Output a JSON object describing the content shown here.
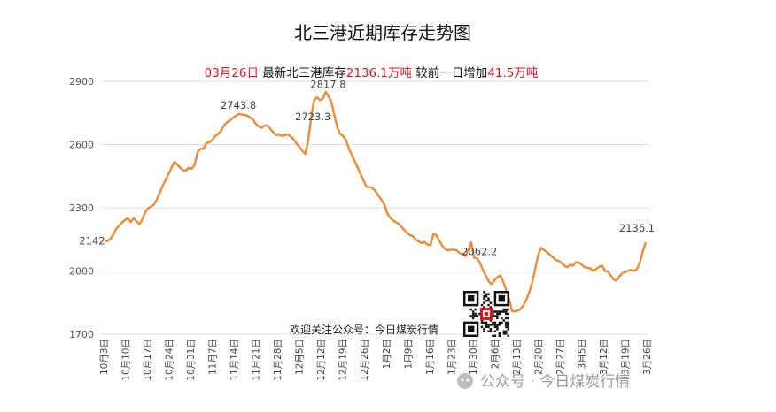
{
  "chart_data": {
    "type": "line",
    "title": "北三港近期库存走势图",
    "subtitle": {
      "date": "03月26日",
      "text1": "  最新北三港库存",
      "latest": "2136.1万吨",
      "text2": "  较前一日增加",
      "change": "41.5万吨"
    },
    "ylim": [
      1700,
      2900
    ],
    "yticks": [
      1700,
      2000,
      2300,
      2600,
      2900
    ],
    "xtick_labels": [
      "10月3日",
      "10月10日",
      "10月17日",
      "10月24日",
      "10月31日",
      "11月7日",
      "11月14日",
      "11月21日",
      "11月28日",
      "12月5日",
      "12月12日",
      "12月19日",
      "12月26日",
      "1月2日",
      "1月9日",
      "1月16日",
      "1月23日",
      "1月30日",
      "2月6日",
      "2月13日",
      "2月20日",
      "2月27日",
      "3月5日",
      "3月12日",
      "3月19日",
      "3月26日"
    ],
    "series": [
      {
        "color": "#ec8b35",
        "values": [
          2142,
          2142,
          2152,
          2172,
          2200,
          2215,
          2230,
          2242,
          2250,
          2232,
          2250,
          2235,
          2222,
          2245,
          2280,
          2298,
          2305,
          2315,
          2340,
          2372,
          2405,
          2432,
          2460,
          2490,
          2518,
          2505,
          2490,
          2478,
          2477,
          2490,
          2485,
          2505,
          2565,
          2580,
          2580,
          2608,
          2610,
          2622,
          2640,
          2650,
          2665,
          2690,
          2705,
          2712,
          2725,
          2735,
          2743.8,
          2743,
          2740,
          2738,
          2728,
          2720,
          2698,
          2685,
          2680,
          2690,
          2690,
          2675,
          2658,
          2645,
          2648,
          2640,
          2645,
          2648,
          2638,
          2625,
          2605,
          2588,
          2570,
          2555,
          2620,
          2723.3,
          2810,
          2825,
          2810,
          2817.8,
          2850,
          2830,
          2800,
          2740,
          2680,
          2650,
          2640,
          2620,
          2580,
          2550,
          2520,
          2490,
          2460,
          2430,
          2400,
          2398,
          2395,
          2380,
          2360,
          2340,
          2320,
          2280,
          2255,
          2242,
          2232,
          2225,
          2210,
          2195,
          2180,
          2170,
          2165,
          2148,
          2140,
          2132,
          2138,
          2125,
          2122,
          2175,
          2170,
          2145,
          2120,
          2105,
          2098,
          2100,
          2102,
          2098,
          2085,
          2080,
          2070,
          2100,
          2135,
          2062.2,
          2060,
          2040,
          2005,
          1980,
          1950,
          1938,
          1955,
          1970,
          1978,
          1950,
          1910,
          1870,
          1810,
          1808,
          1812,
          1820,
          1838,
          1865,
          1900,
          1948,
          2010,
          2075,
          2110,
          2100,
          2090,
          2078,
          2065,
          2052,
          2048,
          2040,
          2025,
          2018,
          2030,
          2025,
          2042,
          2040,
          2030,
          2018,
          2015,
          2012,
          2000,
          2010,
          2020,
          2025,
          2000,
          1998,
          1978,
          1958,
          1955,
          1975,
          1990,
          1995,
          2002,
          2005,
          2000,
          2010,
          2040,
          2094.6,
          2136.1
        ]
      }
    ],
    "annotations": [
      {
        "text": "2142",
        "value": 2142
      },
      {
        "text": "2743.8",
        "value": 2743.8
      },
      {
        "text": "2723.3",
        "value": 2723.3
      },
      {
        "text": "2817.8",
        "value": 2817.8
      },
      {
        "text": "2062.2",
        "value": 2062.2
      },
      {
        "text": "2136.1",
        "value": 2136.1
      }
    ]
  },
  "footer": {
    "follow_text": "欢迎关注公众号：今日煤炭行情",
    "watermark": "公众号 · 今日煤炭行情"
  }
}
